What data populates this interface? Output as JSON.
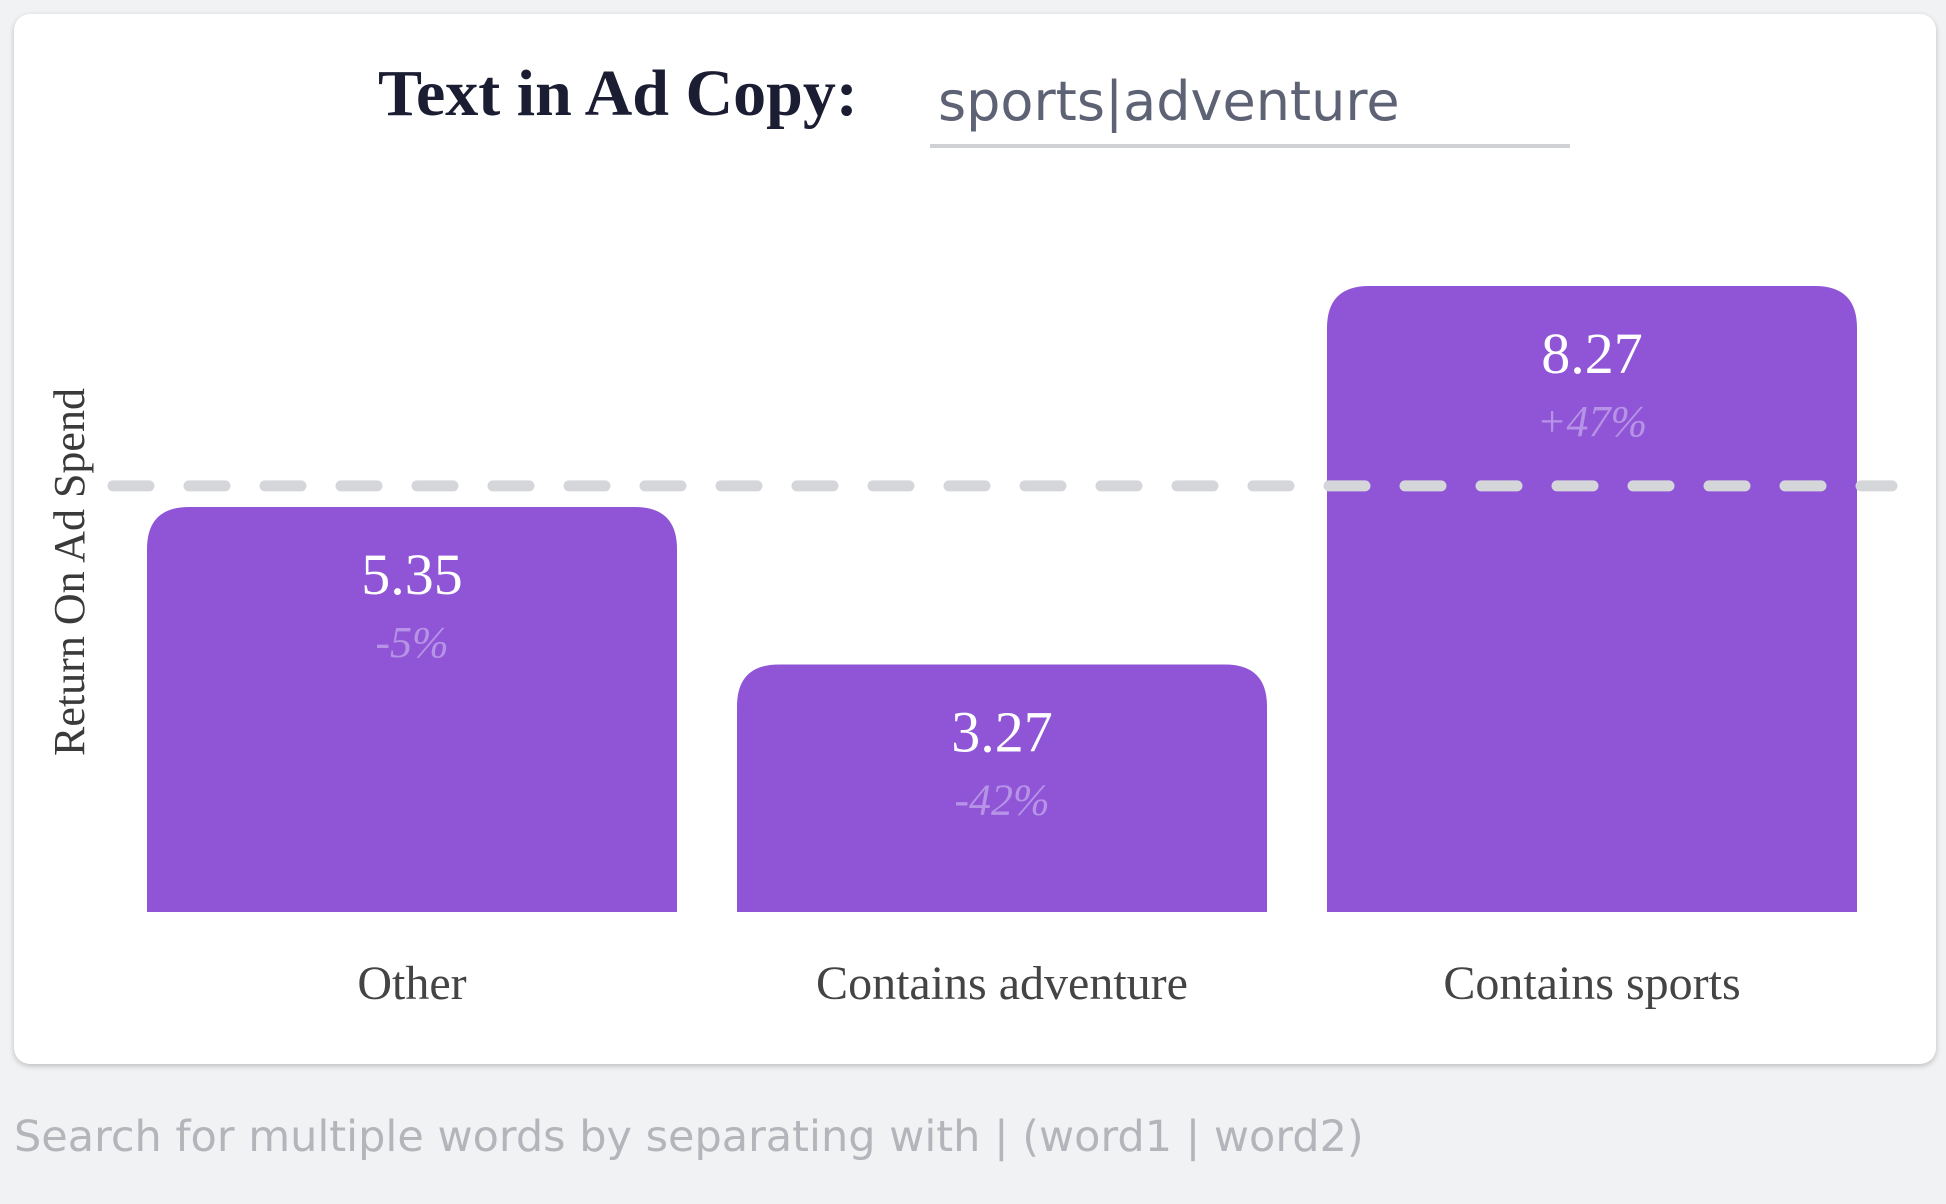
{
  "search": {
    "label": "Text in Ad Copy:",
    "value": "sports|adventure"
  },
  "hint": "Search for multiple words by separating with | (word1 | word2)",
  "colors": {
    "bar": "#8f55d6",
    "baseline_dash": "#d5d6da",
    "pct_text": "#b693e6"
  },
  "chart_data": {
    "type": "bar",
    "title": "",
    "xlabel": "",
    "ylabel": "Return On Ad Spend",
    "categories": [
      "Other",
      "Contains adventure",
      "Contains sports"
    ],
    "values": [
      5.35,
      3.27,
      8.27
    ],
    "value_labels": [
      "5.35",
      "3.27",
      "8.27"
    ],
    "change_labels": [
      "-5%",
      "-42%",
      "+47%"
    ],
    "baseline": 5.63,
    "ylim": [
      0,
      8.27
    ],
    "grid": false,
    "legend": "none"
  }
}
